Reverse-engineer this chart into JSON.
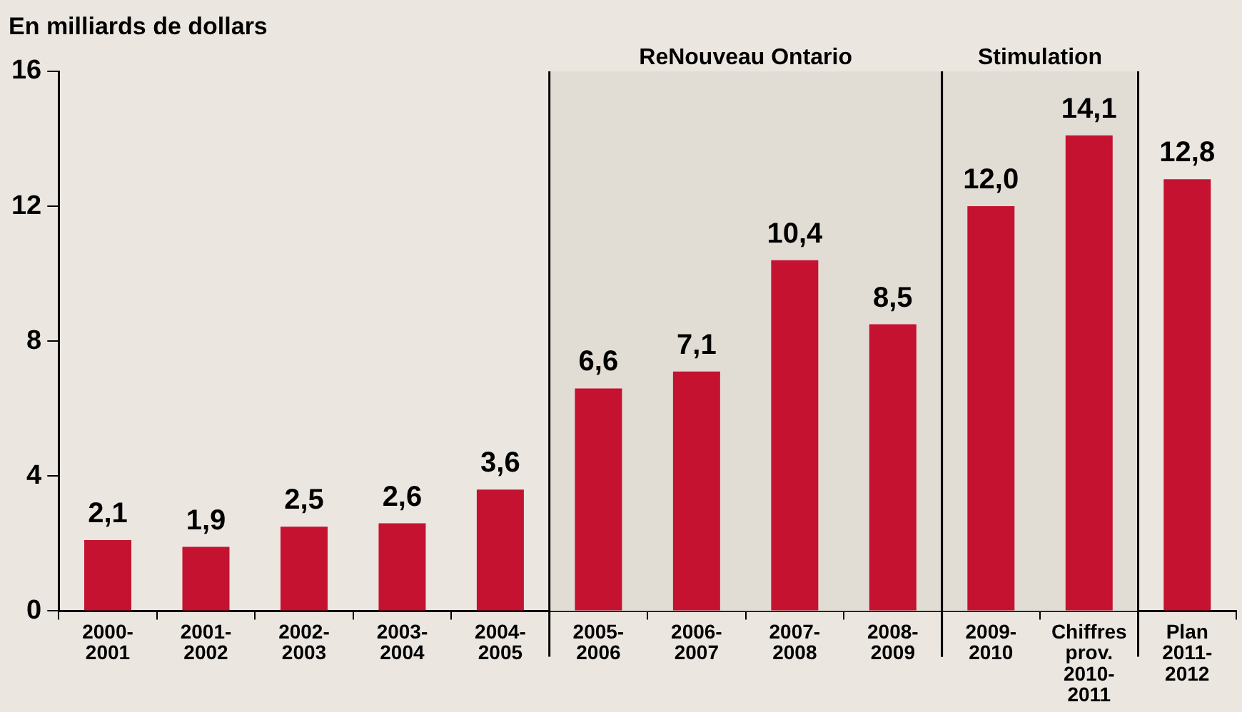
{
  "chart_data": {
    "type": "bar",
    "ylabel": "En milliards de dollars",
    "categories": [
      "2000-\n2001",
      "2001-\n2002",
      "2002-\n2003",
      "2003-\n2004",
      "2004-\n2005",
      "2005-\n2006",
      "2006-\n2007",
      "2007-\n2008",
      "2008-\n2009",
      "2009-\n2010",
      "Chiffres\nprov.\n2010-\n2011",
      "Plan\n2011-\n2012"
    ],
    "values": [
      2.1,
      1.9,
      2.5,
      2.6,
      3.6,
      6.6,
      7.1,
      10.4,
      8.5,
      12.0,
      14.1,
      12.8
    ],
    "value_labels": [
      "2,1",
      "1,9",
      "2,5",
      "2,6",
      "3,6",
      "6,6",
      "7,1",
      "10,4",
      "8,5",
      "12,0",
      "14,1",
      "12,8"
    ],
    "color": "#c41230",
    "ylim": [
      0,
      16
    ],
    "yticks": [
      0,
      4,
      8,
      12,
      16
    ],
    "grid": false,
    "legend": false,
    "bands": [
      {
        "axis": "x",
        "from": "2005-\n2006",
        "to": "2008-\n2009",
        "label": "ReNouveau Ontario",
        "color": "#e2ddd4"
      },
      {
        "axis": "x",
        "from": "2009-\n2010",
        "to": "Chiffres\nprov.\n2010-\n2011",
        "label": "Stimulation",
        "color": "#e2ddd4"
      }
    ]
  }
}
